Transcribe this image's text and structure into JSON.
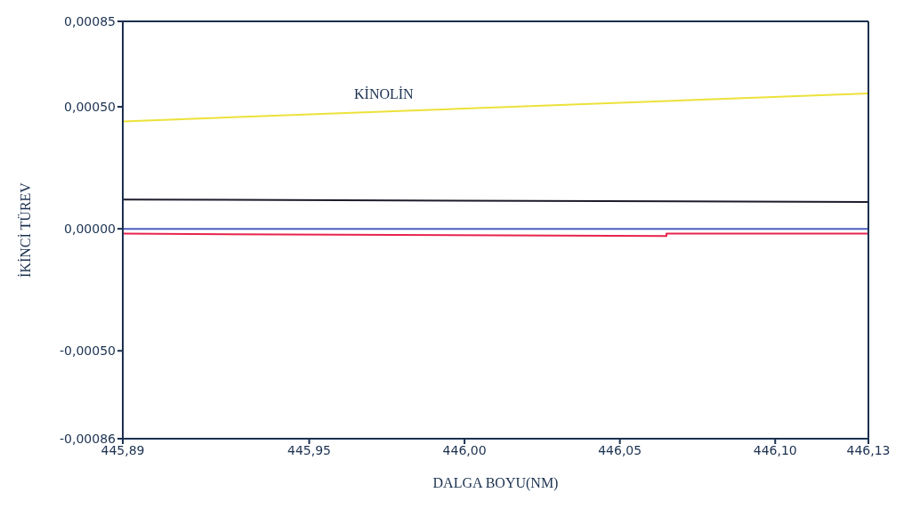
{
  "chart_data": {
    "type": "line",
    "xlabel": "DALGA BOYU(NM)",
    "ylabel": "İKİNCİ TÜREV",
    "xlim": [
      445.89,
      446.13
    ],
    "xticks": [
      {
        "value": 445.89,
        "label": "445,89"
      },
      {
        "value": 445.95,
        "label": "445,95"
      },
      {
        "value": 446.0,
        "label": "446,00"
      },
      {
        "value": 446.05,
        "label": "446,05"
      },
      {
        "value": 446.1,
        "label": "446,10"
      },
      {
        "value": 446.13,
        "label": "446,13"
      }
    ],
    "ylim": [
      -0.00086,
      0.00085
    ],
    "yticks": [
      {
        "value": -0.00086,
        "label": "-0,00086"
      },
      {
        "value": -0.0005,
        "label": "-0,00050"
      },
      {
        "value": 0,
        "label": "0,00000"
      },
      {
        "value": 0.0005,
        "label": "0,00050"
      },
      {
        "value": 0.00085,
        "label": "0,00085"
      }
    ],
    "legend": false,
    "marker": "none",
    "line_style": "solid",
    "series": [
      {
        "name": "KİNOLİN",
        "color": "#ece23a",
        "x": [
          445.89,
          446.13
        ],
        "values": [
          0.00044,
          0.000555
        ]
      },
      {
        "color": "#1c1c2c",
        "x": [
          445.89,
          446.13
        ],
        "values": [
          0.00012,
          0.00011
        ]
      },
      {
        "color": "#4a5ec0",
        "x": [
          445.89,
          446.13
        ],
        "values": [
          0,
          0
        ]
      },
      {
        "color": "#e8244c",
        "x": [
          445.89,
          446.065,
          446.065,
          446.13
        ],
        "values": [
          -2e-05,
          -3e-05,
          -2e-05,
          -2e-05
        ]
      }
    ]
  }
}
